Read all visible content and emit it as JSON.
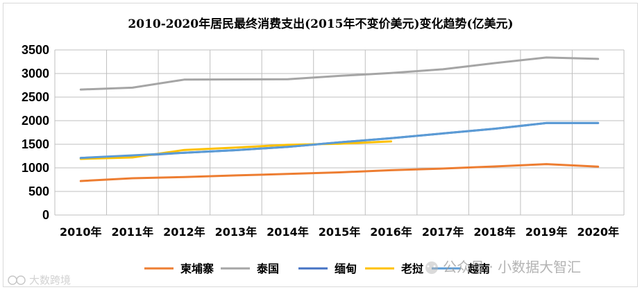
{
  "chart_data": {
    "type": "line",
    "title": "2010-2020年居民最终消费支出(2015年不变价美元)变化趋势(亿美元)",
    "x": [
      "2010年",
      "2011年",
      "2012年",
      "2013年",
      "2014年",
      "2015年",
      "2016年",
      "2017年",
      "2018年",
      "2019年",
      "2020年"
    ],
    "ylim": [
      0,
      3500
    ],
    "yticks": [
      0,
      500,
      1000,
      1500,
      2000,
      2500,
      3000,
      3500
    ],
    "grid": true,
    "legend_position": "bottom",
    "series": [
      {
        "name": "柬埔寨",
        "color": "#ed7d31",
        "values": [
          720,
          780,
          805,
          840,
          870,
          905,
          950,
          985,
          1030,
          1080,
          1025
        ]
      },
      {
        "name": "泰国",
        "color": "#a5a5a5",
        "values": [
          2660,
          2700,
          2870,
          2875,
          2880,
          2950,
          3010,
          3090,
          3220,
          3340,
          3310
        ]
      },
      {
        "name": "缅甸",
        "color": "#4472c4",
        "values": [
          1210,
          1250,
          1320,
          1375,
          1445,
          1540,
          1630,
          1730,
          1830,
          1950,
          1950
        ]
      },
      {
        "name": "老挝",
        "color": "#ffc000",
        "values": [
          1190,
          1220,
          1380,
          1430,
          1490,
          1510,
          1560,
          null,
          null,
          null,
          null
        ]
      },
      {
        "name": "越南",
        "color": "#5b9bd5",
        "values": [
          1210,
          1265,
          1320,
          1375,
          1445,
          1540,
          1630,
          1730,
          1830,
          1950,
          1950
        ]
      }
    ]
  },
  "watermarks": {
    "left": "大数跨境",
    "right": "公众号 · 小数据大智汇"
  }
}
